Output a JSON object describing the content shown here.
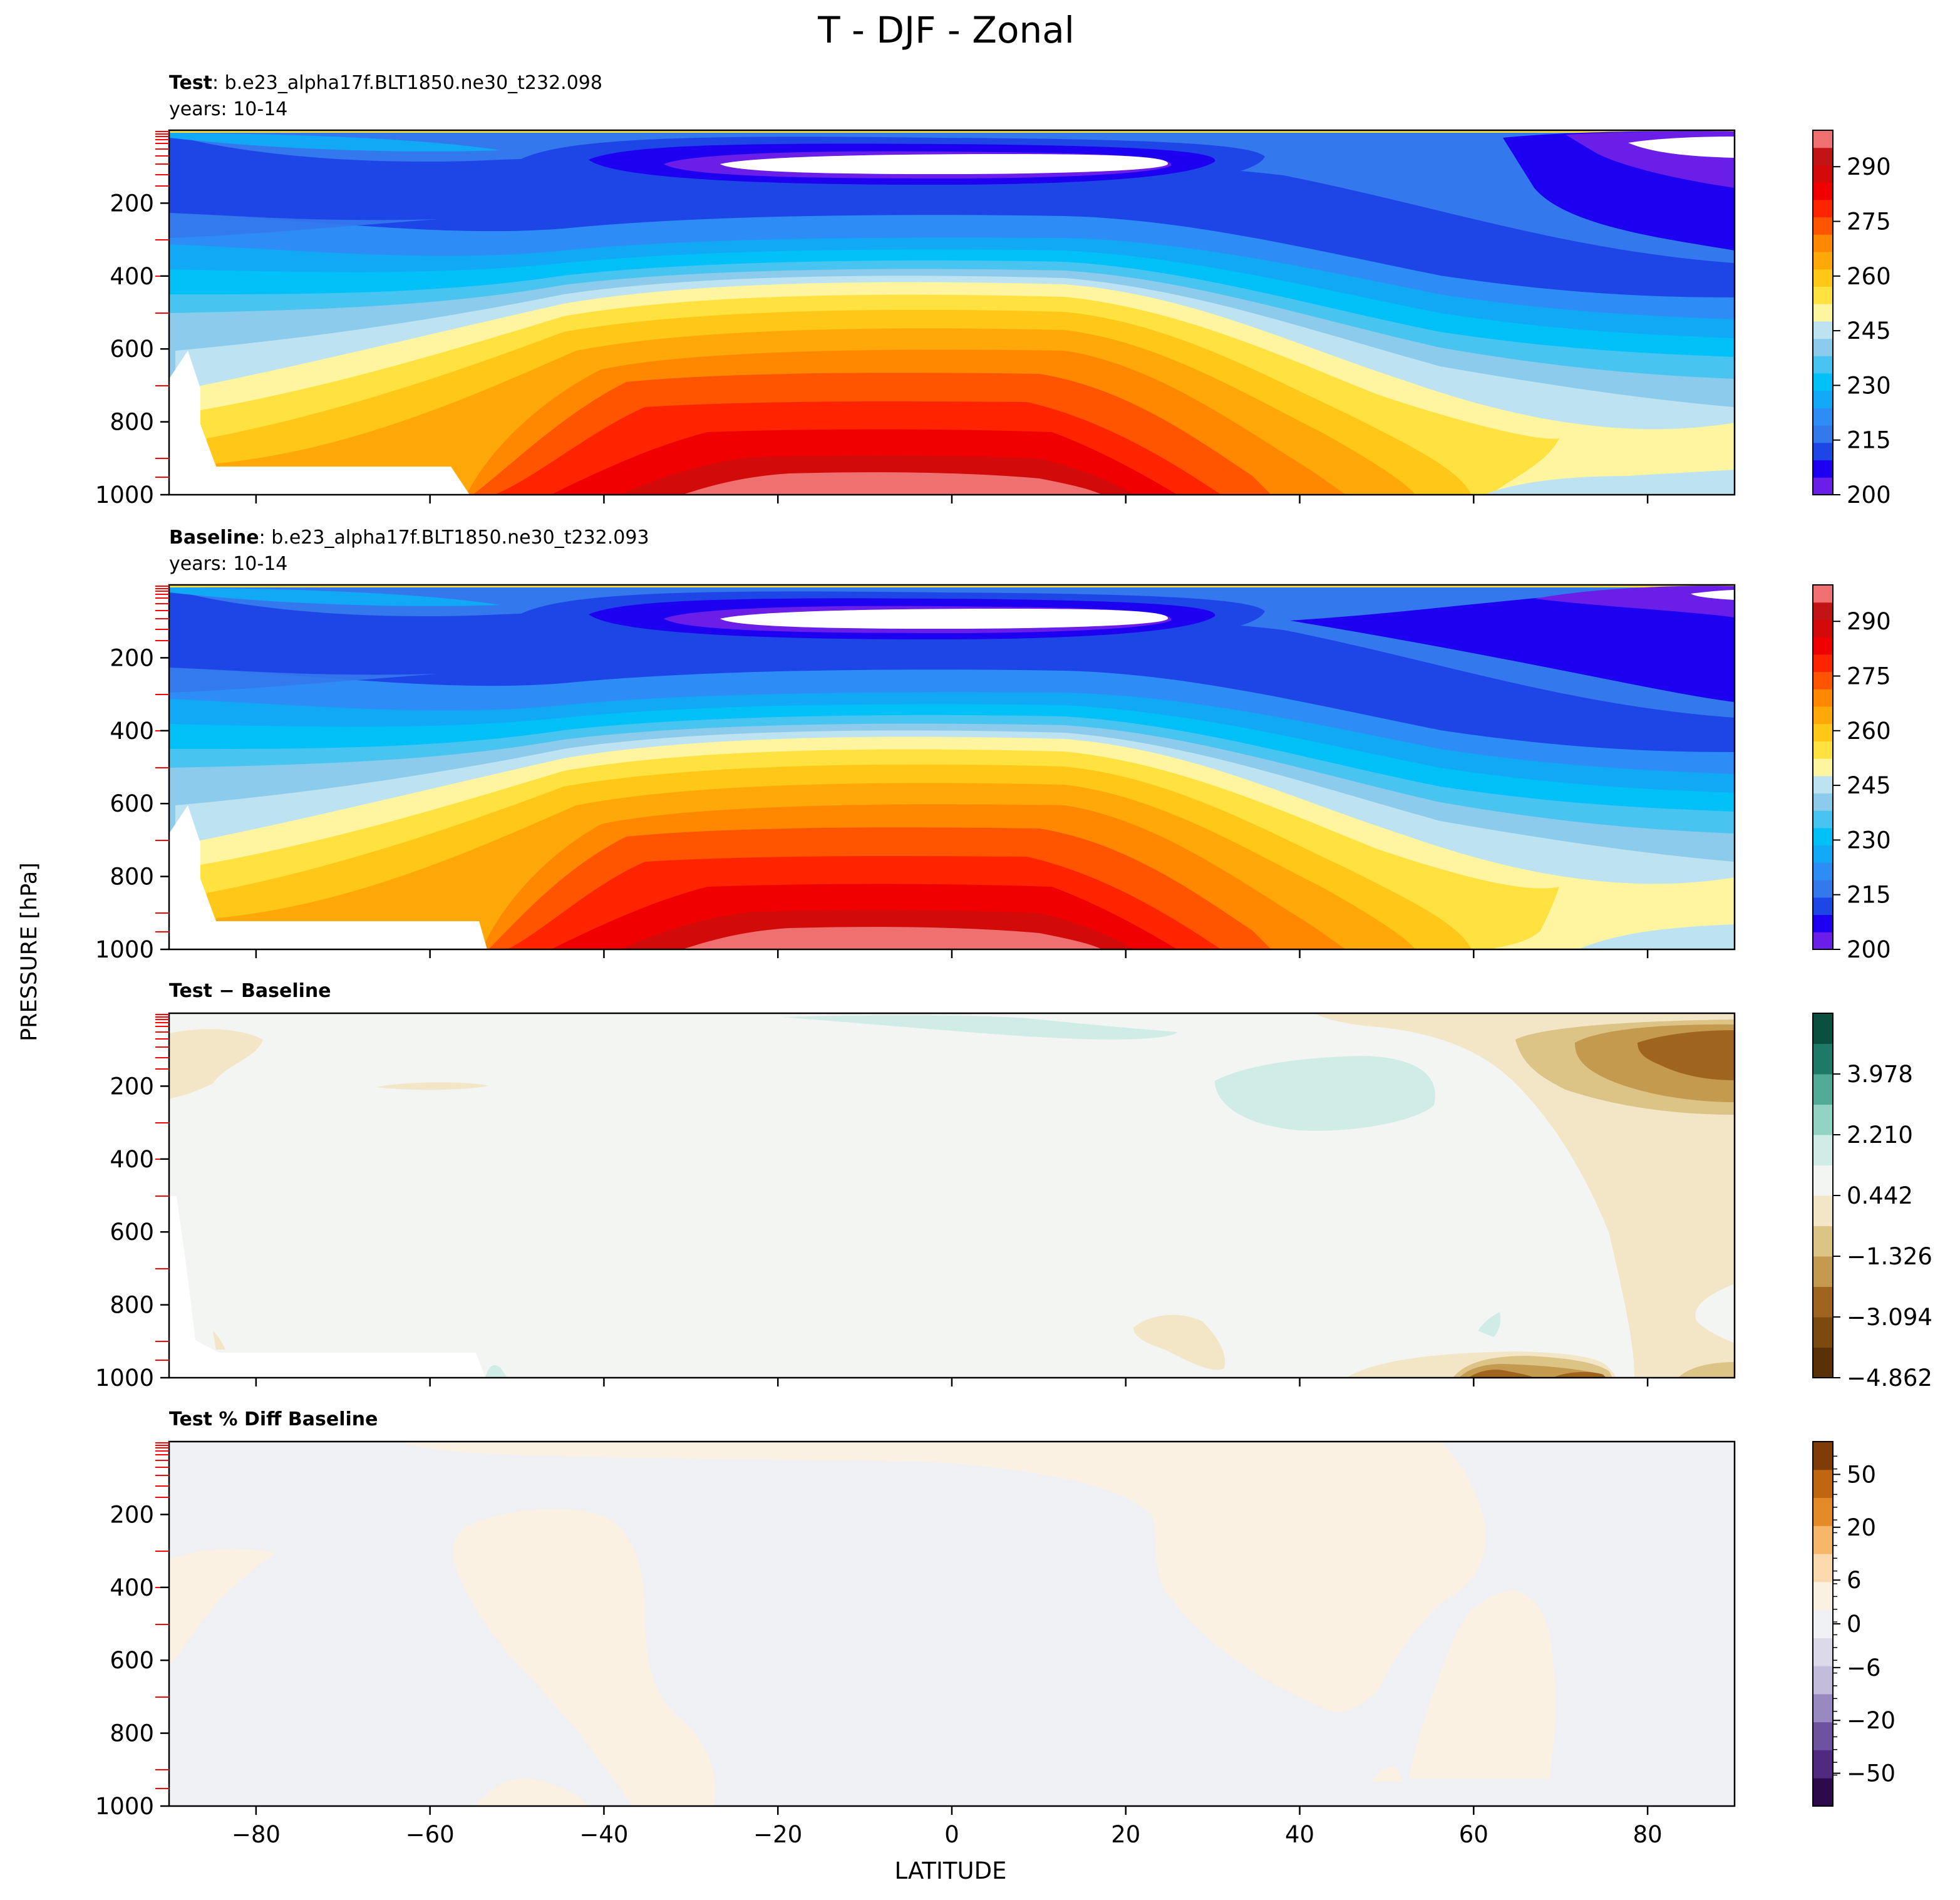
{
  "figure": {
    "title": "T - DJF - Zonal",
    "ylabel": "PRESSURE [hPa]",
    "xlabel": "LATITUDE"
  },
  "chart_data": [
    {
      "type": "heatmap",
      "plot": "contour",
      "title_bold": "Test",
      "title_rest": ": b.e23_alpha17f.BLT1850.ne30_t232.098",
      "subtitle": "years: 10-14",
      "xlim": [
        -90,
        90
      ],
      "ylim": [
        1000,
        0
      ],
      "xticks": [
        -80,
        -60,
        -40,
        -20,
        0,
        20,
        40,
        60,
        80
      ],
      "yticks": [
        200,
        400,
        600,
        800,
        1000
      ],
      "colorbar": {
        "tick_labels": [
          "200",
          "215",
          "230",
          "245",
          "260",
          "275",
          "290"
        ],
        "range": [
          200,
          300
        ],
        "colors": [
          "#6a1ee8",
          "#1e00f0",
          "#1e46e6",
          "#3478ee",
          "#2d8cf5",
          "#11a8f5",
          "#00c0f8",
          "#48c4f0",
          "#8ccbec",
          "#bde3f2",
          "#fff5a0",
          "#ffe240",
          "#ffc818",
          "#ffa808",
          "#ff8800",
          "#ff5400",
          "#ff2400",
          "#f00000",
          "#d20a0a",
          "#c21414",
          "#f07070"
        ]
      },
      "fields": {
        "warm_max_lat": 0,
        "cold_trap": "tropical tropopause ~90 hPa",
        "max_T": "≈300 K near surface, equator"
      }
    },
    {
      "type": "heatmap",
      "plot": "contour",
      "title_bold": "Baseline",
      "title_rest": ": b.e23_alpha17f.BLT1850.ne30_t232.093",
      "subtitle": "years: 10-14",
      "xlim": [
        -90,
        90
      ],
      "ylim": [
        1000,
        0
      ],
      "xticks": [
        -80,
        -60,
        -40,
        -20,
        0,
        20,
        40,
        60,
        80
      ],
      "yticks": [
        200,
        400,
        600,
        800,
        1000
      ],
      "colorbar": {
        "tick_labels": [
          "200",
          "215",
          "230",
          "245",
          "260",
          "275",
          "290"
        ],
        "range": [
          200,
          300
        ],
        "colors": [
          "#6a1ee8",
          "#1e00f0",
          "#1e46e6",
          "#3478ee",
          "#2d8cf5",
          "#11a8f5",
          "#00c0f8",
          "#48c4f0",
          "#8ccbec",
          "#bde3f2",
          "#fff5a0",
          "#ffe240",
          "#ffc818",
          "#ffa808",
          "#ff8800",
          "#ff5400",
          "#ff2400",
          "#f00000",
          "#d20a0a",
          "#c21414",
          "#f07070"
        ]
      }
    },
    {
      "type": "heatmap",
      "plot": "contour",
      "title_bold": "Test − Baseline",
      "xlim": [
        -90,
        90
      ],
      "ylim": [
        1000,
        0
      ],
      "xticks": [
        -80,
        -60,
        -40,
        -20,
        0,
        20,
        40,
        60,
        80
      ],
      "yticks": [
        200,
        400,
        600,
        800,
        1000
      ],
      "colorbar": {
        "tick_labels": [
          "−4.862",
          "−3.094",
          "−1.326",
          "0.442",
          "2.210",
          "3.978"
        ],
        "range": [
          -4.862,
          5.746
        ],
        "colors": [
          "#5a3008",
          "#7c4a0e",
          "#9e6420",
          "#c39a4e",
          "#dcc386",
          "#f3e6c6",
          "#f3f5f2",
          "#cfece6",
          "#93d3c4",
          "#52ab96",
          "#1e7a66",
          "#0b4f40"
        ]
      }
    },
    {
      "type": "heatmap",
      "plot": "contour",
      "title_bold": "Test % Diff Baseline",
      "xlim": [
        -90,
        90
      ],
      "ylim": [
        1000,
        0
      ],
      "xticks": [
        -80,
        -60,
        -40,
        -20,
        0,
        20,
        40,
        60,
        80
      ],
      "yticks": [
        200,
        400,
        600,
        800,
        1000
      ],
      "colorbar": {
        "tick_labels": [
          "−50",
          "−20",
          "−6",
          "0",
          "6",
          "20",
          "50"
        ],
        "colors_low_to_high": [
          "#2d0a4a",
          "#4f2a80",
          "#6e52a0",
          "#9a88c0",
          "#c3bcdb",
          "#dcd9ea",
          "#eff0f4",
          "#fbf1e3",
          "#fad9ae",
          "#f6b76a",
          "#e58a28",
          "#c06510",
          "#7f3b08"
        ]
      }
    }
  ],
  "colors": {
    "axis": "#000000",
    "minor_tick": "#ff0000"
  }
}
